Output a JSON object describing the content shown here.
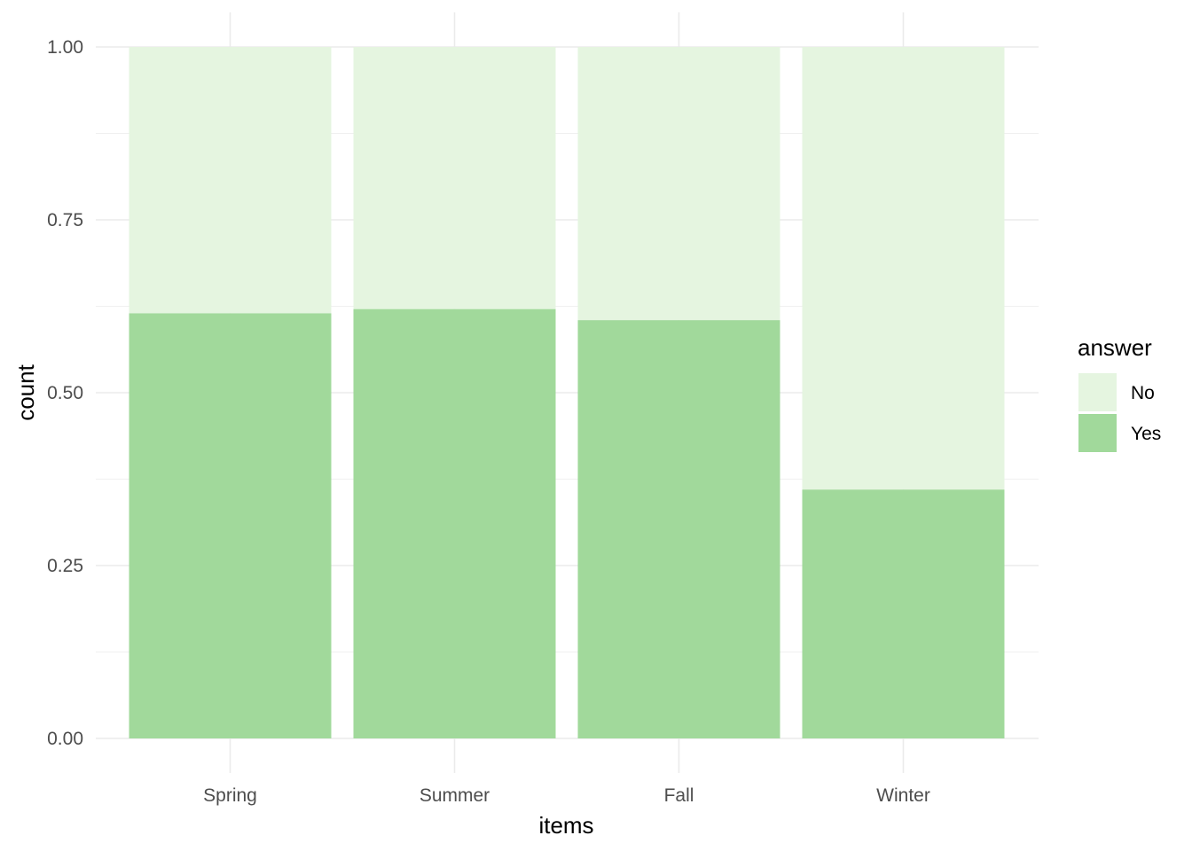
{
  "chart_data": {
    "type": "bar",
    "stacked": true,
    "categories": [
      "Spring",
      "Summer",
      "Fall",
      "Winter"
    ],
    "series": [
      {
        "name": "Yes",
        "values": [
          0.615,
          0.621,
          0.605,
          0.36
        ],
        "color": "#a1d99b"
      },
      {
        "name": "No",
        "values": [
          0.385,
          0.379,
          0.395,
          0.64
        ],
        "color": "#e5f5e0"
      }
    ],
    "xlabel": "items",
    "ylabel": "count",
    "ylim": [
      0,
      1
    ],
    "yticks": [
      "0.00",
      "0.25",
      "0.50",
      "0.75",
      "1.00"
    ],
    "grid": true,
    "legend": {
      "title": "answer",
      "placement": "right",
      "entries": [
        {
          "label": "No",
          "color": "#e5f5e0"
        },
        {
          "label": "Yes",
          "color": "#a1d99b"
        }
      ]
    }
  }
}
